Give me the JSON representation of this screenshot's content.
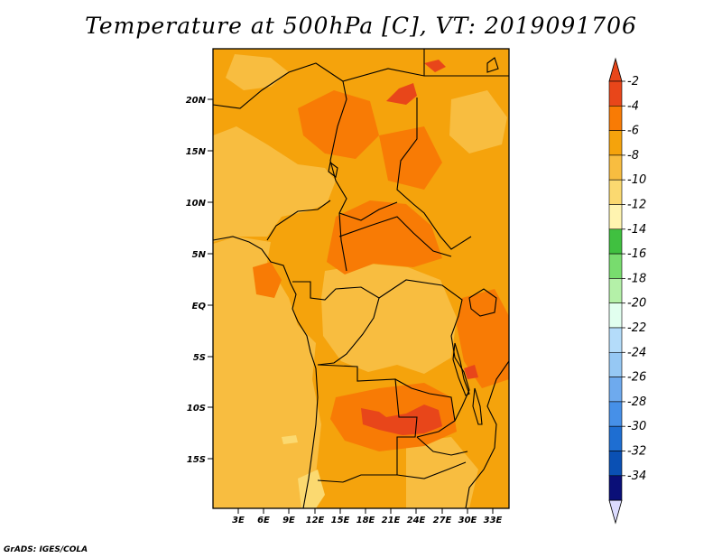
{
  "title": "Temperature at 500hPa [C], VT: 2019091706",
  "credit": "GrADS: IGES/COLA",
  "lat_labels": [
    "20N",
    "15N",
    "10N",
    "5N",
    "EQ",
    "5S",
    "10S",
    "15S"
  ],
  "lon_labels": [
    "3E",
    "6E",
    "9E",
    "12E",
    "15E",
    "18E",
    "21E",
    "24E",
    "27E",
    "30E",
    "33E"
  ],
  "colorbar": {
    "labels": [
      "-2",
      "-4",
      "-6",
      "-8",
      "-10",
      "-12",
      "-14",
      "-16",
      "-18",
      "-20",
      "-22",
      "-24",
      "-26",
      "-28",
      "-30",
      "-32",
      "-34"
    ],
    "colors": [
      "#e8461a",
      "#f87b05",
      "#f5a30c",
      "#f8bd40",
      "#fbd970",
      "#fff4b0",
      "#40c040",
      "#78dc6e",
      "#b4f0a8",
      "#e1ffef",
      "#b4dcfa",
      "#96c8f4",
      "#6eaaee",
      "#4690e8",
      "#1e6ed2",
      "#0a50b4",
      "#0a0f78"
    ],
    "top_arrow_color": "#e8461a",
    "bottom_arrow_color": "#dcdcff"
  },
  "map": {
    "base_color": "#f5a30c",
    "warm_color": "#f87b05",
    "hot_color": "#e8461a",
    "cool_color": "#f8bd40",
    "cooler_color": "#fbd970"
  }
}
